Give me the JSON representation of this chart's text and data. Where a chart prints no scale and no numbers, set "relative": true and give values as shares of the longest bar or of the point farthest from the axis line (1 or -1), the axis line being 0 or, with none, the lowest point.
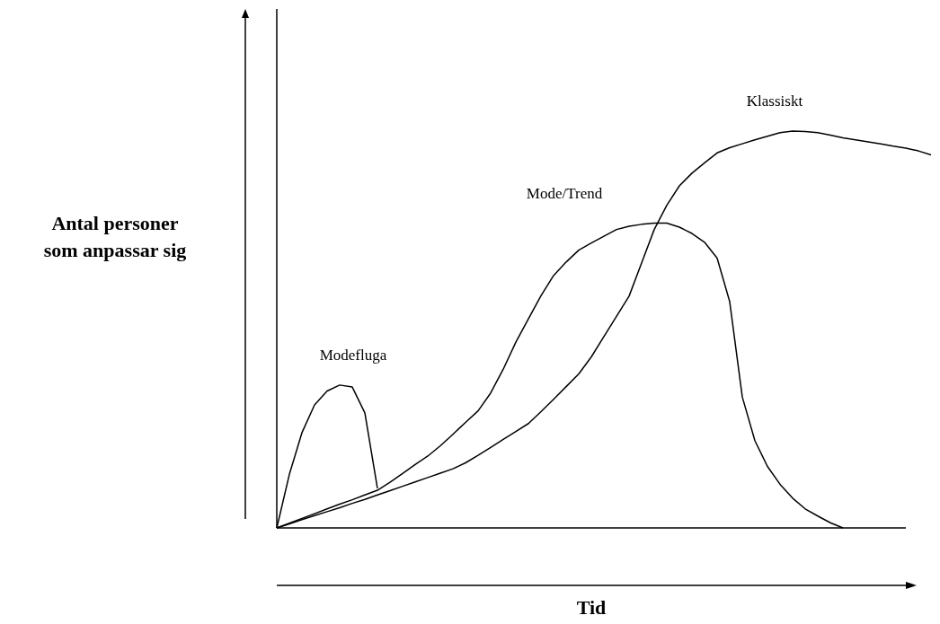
{
  "chart_data": {
    "type": "line",
    "relative": true,
    "xlabel": "Tid",
    "ylabel": "Antal personer som anpassar sig",
    "legend": false,
    "marker": "none",
    "line_style": "solid",
    "categories": [
      null,
      null,
      null,
      null,
      null,
      null,
      null,
      null,
      null,
      null,
      null,
      null,
      null,
      null,
      null,
      null,
      null,
      null,
      null,
      null,
      null,
      null,
      null,
      null,
      null,
      null,
      null,
      null,
      null,
      null,
      null,
      null,
      null,
      null,
      null,
      null,
      null,
      null,
      null,
      null,
      null,
      null,
      null,
      null,
      null,
      null,
      null,
      null,
      null,
      null,
      null,
      null,
      null
    ],
    "series": [
      {
        "name": "Modefluga",
        "color": "#000000",
        "values": [
          0,
          0.135,
          0.24,
          0.31,
          0.345,
          0.36,
          0.355,
          0.29,
          0.1,
          null,
          null,
          null,
          null,
          null,
          null,
          null,
          null,
          null,
          null,
          null,
          null,
          null,
          null,
          null,
          null,
          null,
          null,
          null,
          null,
          null,
          null,
          null,
          null,
          null,
          null,
          null,
          null,
          null,
          null,
          null,
          null,
          null,
          null,
          null,
          null,
          null,
          null,
          null,
          null,
          null,
          null,
          null,
          null
        ]
      },
      {
        "name": "Mode/Trend",
        "color": "#000000",
        "values": [
          0,
          0.012,
          0.024,
          0.036,
          0.048,
          0.06,
          0.071,
          0.083,
          0.095,
          0.115,
          0.137,
          0.16,
          0.181,
          0.207,
          0.236,
          0.266,
          0.295,
          0.34,
          0.4,
          0.468,
          0.527,
          0.585,
          0.636,
          0.67,
          0.7,
          0.718,
          0.735,
          0.752,
          0.76,
          0.765,
          0.768,
          0.768,
          0.758,
          0.742,
          0.72,
          0.68,
          0.57,
          0.33,
          0.22,
          0.155,
          0.11,
          0.075,
          0.048,
          0.03,
          0.013,
          0,
          null,
          null,
          null,
          null,
          null,
          null,
          null
        ]
      },
      {
        "name": "Klassiskt",
        "color": "#000000",
        "values": [
          0,
          0.01,
          0.021,
          0.031,
          0.041,
          0.051,
          0.062,
          0.072,
          0.083,
          0.094,
          0.105,
          0.116,
          0.127,
          0.138,
          0.149,
          0.164,
          0.183,
          0.203,
          0.223,
          0.243,
          0.263,
          0.293,
          0.324,
          0.356,
          0.388,
          0.431,
          0.482,
          0.533,
          0.584,
          0.668,
          0.752,
          0.813,
          0.862,
          0.894,
          0.92,
          0.945,
          0.958,
          0.968,
          0.978,
          0.987,
          0.996,
          1,
          0.999,
          0.996,
          0.99,
          0.983,
          0.978,
          0.973,
          0.968,
          0.962,
          0.957,
          0.95,
          0.94
        ]
      }
    ]
  }
}
